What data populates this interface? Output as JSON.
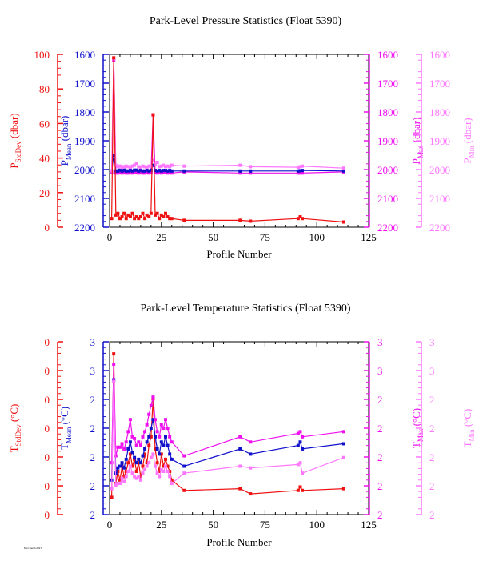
{
  "colors": {
    "stddev": "#ee1111",
    "mean": "#1111cc",
    "max": "#ee11ee",
    "min": "#ff77ff",
    "axis": "#000000"
  },
  "footer_text": "Mon Dec 4 2017",
  "chart_data": [
    {
      "type": "line",
      "title": "Park-Level Pressure Statistics (Float 5390)",
      "xlabel": "Profile Number",
      "xlim": [
        0,
        125
      ],
      "xticks": [
        0,
        25,
        50,
        75,
        100,
        125
      ],
      "left_axes": [
        {
          "id": "stddev",
          "label": "P",
          "sub": "StdDev",
          "unit": " (dbar)",
          "lim": [
            0,
            100
          ],
          "inverted": false,
          "ticks": [
            "0",
            "20",
            "40",
            "60",
            "80",
            "100"
          ]
        },
        {
          "id": "mean",
          "label": "P",
          "sub": "Mean",
          "unit": " (dbar)",
          "lim": [
            1600,
            2200
          ],
          "inverted": true,
          "ticks": [
            "1600",
            "1700",
            "1800",
            "1900",
            "2000",
            "2100",
            "2200"
          ]
        }
      ],
      "right_axes": [
        {
          "id": "max",
          "label": "P",
          "sub": "Max",
          "unit": " (dbar)",
          "lim": [
            1600,
            2200
          ],
          "inverted": true,
          "ticks": [
            "1600",
            "1700",
            "1800",
            "1900",
            "2000",
            "2100",
            "2200"
          ]
        },
        {
          "id": "min",
          "label": "P",
          "sub": "Min",
          "unit": " (dbar)",
          "lim": [
            1600,
            2200
          ],
          "inverted": true,
          "ticks": [
            "1600",
            "1700",
            "1800",
            "1900",
            "2000",
            "2100",
            "2200"
          ]
        }
      ],
      "series": [
        {
          "axis": "max",
          "x": [
            1,
            2,
            3,
            4,
            5,
            6,
            7,
            8,
            9,
            10,
            11,
            12,
            13,
            14,
            15,
            16,
            17,
            18,
            19,
            20,
            21,
            22,
            23,
            24,
            25,
            26,
            27,
            28,
            29,
            30,
            36,
            63,
            68,
            91,
            92,
            93,
            113
          ],
          "y": [
            2008,
            1620,
            2012,
            2012,
            2010,
            2012,
            2010,
            2012,
            2012,
            2010,
            2012,
            2010,
            2010,
            2012,
            2010,
            2012,
            2012,
            2010,
            2012,
            2010,
            1810,
            2010,
            2012,
            2010,
            2012,
            2010,
            2010,
            2012,
            2010,
            2012,
            2008,
            2012,
            2012,
            2012,
            2012,
            2012,
            2008
          ]
        },
        {
          "axis": "mean",
          "x": [
            1,
            2,
            3,
            4,
            5,
            6,
            7,
            8,
            9,
            10,
            11,
            12,
            13,
            14,
            15,
            16,
            17,
            18,
            19,
            20,
            21,
            22,
            23,
            24,
            25,
            26,
            27,
            28,
            29,
            30,
            36,
            63,
            68,
            91,
            92,
            93,
            113
          ],
          "y": [
            2005,
            1950,
            2005,
            2005,
            2002,
            2005,
            2002,
            2005,
            2005,
            2002,
            2005,
            2002,
            2002,
            2005,
            2002,
            2005,
            2005,
            2002,
            2005,
            2002,
            1985,
            2003,
            2005,
            2003,
            2005,
            2003,
            2003,
            2005,
            2003,
            2005,
            2005,
            2005,
            2005,
            2005,
            2004,
            2003,
            2005
          ]
        },
        {
          "axis": "min",
          "x": [
            1,
            2,
            3,
            4,
            5,
            6,
            7,
            8,
            9,
            10,
            11,
            12,
            13,
            14,
            15,
            16,
            17,
            18,
            19,
            20,
            21,
            22,
            23,
            24,
            25,
            26,
            27,
            28,
            29,
            30,
            36,
            63,
            68,
            91,
            92,
            93,
            113
          ],
          "y": [
            2005,
            1615,
            1985,
            1990,
            1988,
            1992,
            1990,
            1988,
            1990,
            1992,
            1988,
            1985,
            1978,
            1990,
            1992,
            1988,
            1990,
            1992,
            1988,
            1990,
            1968,
            1982,
            1975,
            1990,
            1988,
            1985,
            1990,
            1988,
            1990,
            1985,
            1988,
            1985,
            1990,
            1992,
            1990,
            1988,
            1995
          ]
        },
        {
          "axis": "stddev",
          "x": [
            1,
            2,
            3,
            4,
            5,
            6,
            7,
            8,
            9,
            10,
            11,
            12,
            13,
            14,
            15,
            16,
            17,
            18,
            19,
            20,
            21,
            22,
            23,
            24,
            25,
            26,
            27,
            28,
            29,
            30,
            36,
            63,
            68,
            91,
            92,
            93,
            113
          ],
          "y": [
            5,
            98,
            7,
            8,
            5,
            6,
            8,
            5,
            7,
            6,
            8,
            5,
            6,
            5,
            6,
            8,
            5,
            7,
            6,
            8,
            65,
            7,
            8,
            5,
            7,
            6,
            8,
            6,
            5,
            5,
            4,
            4,
            3.5,
            5,
            6,
            5,
            3
          ]
        }
      ]
    },
    {
      "type": "line",
      "title": "Park-Level Temperature Statistics (Float 5390)",
      "xlabel": "Profile Number",
      "xlim": [
        0,
        125
      ],
      "xticks": [
        0,
        25,
        50,
        75,
        100,
        125
      ],
      "left_axes": [
        {
          "id": "stddev",
          "label": "T",
          "sub": "StdDev",
          "unit": " (°C)",
          "lim": [
            0,
            1
          ],
          "inverted": false,
          "ticks": [
            "0",
            "0",
            "0",
            "0",
            "0",
            "0",
            "0"
          ]
        },
        {
          "id": "mean",
          "label": "T",
          "sub": "Mean",
          "unit": " (°C)",
          "lim": [
            2,
            3
          ],
          "inverted": false,
          "ticks": [
            "2",
            "2",
            "2",
            "2",
            "2",
            "3",
            "3"
          ]
        }
      ],
      "right_axes": [
        {
          "id": "max",
          "label": "T",
          "sub": "Max",
          "unit": " (°C)",
          "lim": [
            2,
            3
          ],
          "inverted": false,
          "ticks": [
            "2",
            "2",
            "2",
            "2",
            "2",
            "3",
            "3"
          ]
        },
        {
          "id": "min",
          "label": "T",
          "sub": "Min",
          "unit": " (°C)",
          "lim": [
            2,
            3
          ],
          "inverted": false,
          "ticks": [
            "2",
            "2",
            "2",
            "2",
            "2",
            "3",
            "3"
          ]
        }
      ],
      "series": [
        {
          "axis": "stddev",
          "x": [
            1,
            2,
            3,
            4,
            5,
            6,
            7,
            8,
            9,
            10,
            11,
            12,
            13,
            14,
            15,
            16,
            17,
            18,
            19,
            20,
            21,
            22,
            23,
            24,
            25,
            26,
            27,
            28,
            29,
            30,
            36,
            63,
            68,
            91,
            92,
            93,
            113
          ],
          "y": [
            0.1,
            0.93,
            0.18,
            0.25,
            0.2,
            0.28,
            0.22,
            0.25,
            0.3,
            0.35,
            0.28,
            0.32,
            0.25,
            0.3,
            0.22,
            0.28,
            0.35,
            0.3,
            0.4,
            0.45,
            0.67,
            0.38,
            0.3,
            0.25,
            0.35,
            0.28,
            0.32,
            0.28,
            0.25,
            0.2,
            0.14,
            0.15,
            0.12,
            0.14,
            0.16,
            0.14,
            0.15
          ]
        },
        {
          "axis": "mean",
          "x": [
            1,
            2,
            3,
            4,
            5,
            6,
            7,
            8,
            9,
            10,
            11,
            12,
            13,
            14,
            15,
            16,
            17,
            18,
            19,
            20,
            21,
            22,
            23,
            24,
            25,
            26,
            27,
            28,
            29,
            30,
            36,
            63,
            68,
            91,
            92,
            93,
            113
          ],
          "y": [
            2.2,
            2.78,
            2.24,
            2.27,
            2.28,
            2.3,
            2.27,
            2.32,
            2.38,
            2.42,
            2.36,
            2.33,
            2.3,
            2.32,
            2.3,
            2.34,
            2.38,
            2.42,
            2.45,
            2.5,
            2.55,
            2.45,
            2.38,
            2.35,
            2.42,
            2.4,
            2.45,
            2.4,
            2.35,
            2.32,
            2.28,
            2.38,
            2.35,
            2.4,
            2.42,
            2.38,
            2.41
          ]
        },
        {
          "axis": "max",
          "x": [
            1,
            2,
            3,
            4,
            5,
            6,
            7,
            8,
            9,
            10,
            11,
            12,
            13,
            14,
            15,
            16,
            17,
            18,
            19,
            20,
            21,
            22,
            23,
            24,
            25,
            26,
            27,
            28,
            29,
            30,
            36,
            63,
            68,
            91,
            92,
            93,
            113
          ],
          "y": [
            2.3,
            2.87,
            2.34,
            2.39,
            2.39,
            2.41,
            2.38,
            2.42,
            2.48,
            2.55,
            2.45,
            2.44,
            2.4,
            2.42,
            2.4,
            2.45,
            2.48,
            2.52,
            2.58,
            2.63,
            2.68,
            2.55,
            2.48,
            2.45,
            2.52,
            2.5,
            2.55,
            2.5,
            2.45,
            2.42,
            2.34,
            2.45,
            2.42,
            2.47,
            2.48,
            2.45,
            2.48
          ]
        },
        {
          "axis": "min",
          "x": [
            1,
            2,
            3,
            4,
            5,
            6,
            7,
            8,
            9,
            10,
            11,
            12,
            13,
            14,
            15,
            16,
            17,
            18,
            19,
            20,
            21,
            22,
            23,
            24,
            25,
            26,
            27,
            28,
            29,
            30,
            36,
            63,
            68,
            91,
            92,
            93,
            113
          ],
          "y": [
            2.15,
            2.77,
            2.17,
            2.18,
            2.18,
            2.21,
            2.19,
            2.22,
            2.25,
            2.28,
            2.24,
            2.22,
            2.21,
            2.22,
            2.2,
            2.24,
            2.26,
            2.28,
            2.3,
            2.33,
            2.35,
            2.28,
            2.24,
            2.22,
            2.26,
            2.25,
            2.28,
            2.25,
            2.22,
            2.18,
            2.24,
            2.28,
            2.27,
            2.29,
            2.3,
            2.24,
            2.33
          ]
        }
      ]
    }
  ]
}
